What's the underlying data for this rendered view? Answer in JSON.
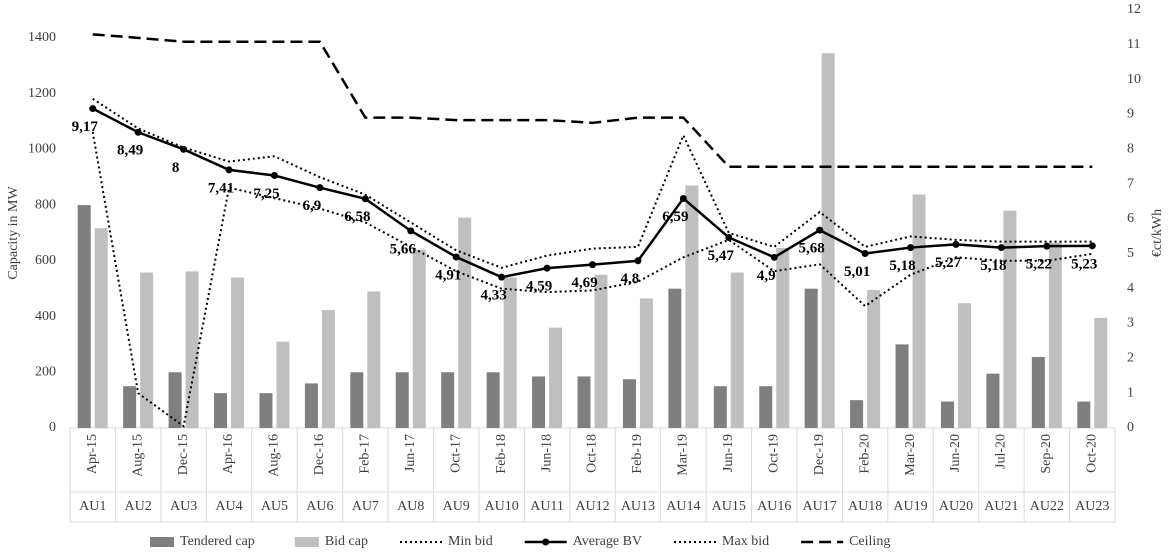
{
  "chart_data": {
    "type": "bar-line",
    "categories": [
      "Apr-15",
      "Aug-15",
      "Dec-15",
      "Apr-16",
      "Aug-16",
      "Dec-16",
      "Feb-17",
      "Jun-17",
      "Oct-17",
      "Feb-18",
      "Jun-18",
      "Oct-18",
      "Feb-19",
      "Mar-19",
      "Jun-19",
      "Oct-19",
      "Dec-19",
      "Feb-20",
      "Mar-20",
      "Jun-20",
      "Jul-20",
      "Sep-20",
      "Oct-20"
    ],
    "auctions": [
      "AU1",
      "AU2",
      "AU3",
      "AU4",
      "AU5",
      "AU6",
      "AU7",
      "AU8",
      "AU9",
      "AU10",
      "AU11",
      "AU12",
      "AU13",
      "AU14",
      "AU15",
      "AU16",
      "AU17",
      "AU18",
      "AU19",
      "AU20",
      "AU21",
      "AU22",
      "AU23"
    ],
    "ylabel": "Capacity in MW",
    "y2label": "€ct/kWh",
    "ylim": [
      0,
      1500
    ],
    "yticks": [
      0,
      200,
      400,
      600,
      800,
      1000,
      1200,
      1400
    ],
    "y2lim": [
      0,
      12
    ],
    "y2ticks": [
      0,
      1,
      2,
      3,
      4,
      5,
      6,
      7,
      8,
      9,
      10,
      11,
      12
    ],
    "legend": "bottom",
    "series": [
      {
        "name": "Tendered cap",
        "kind": "bar",
        "color": "#7f7f7f",
        "values": [
          800,
          150,
          200,
          125,
          125,
          160,
          200,
          200,
          200,
          200,
          185,
          185,
          175,
          500,
          150,
          150,
          500,
          100,
          300,
          95,
          195,
          255,
          95
        ]
      },
      {
        "name": "Bid cap",
        "kind": "bar",
        "color": "#bfbfbf",
        "values": [
          717,
          558,
          562,
          540,
          310,
          423,
          490,
          640,
          755,
          540,
          360,
          550,
          465,
          870,
          558,
          646,
          1345,
          495,
          838,
          448,
          780,
          665,
          395
        ]
      },
      {
        "name": "Min bid",
        "kind": "line",
        "axis": "y2",
        "color": "#000000",
        "dash": "dotted",
        "values": [
          8.5,
          1.0,
          0.05,
          6.9,
          6.6,
          6.3,
          5.9,
          5.2,
          4.5,
          4.0,
          3.9,
          3.95,
          4.2,
          4.9,
          5.4,
          4.5,
          4.7,
          3.5,
          4.4,
          4.9,
          4.8,
          4.8,
          5.0
        ]
      },
      {
        "name": "Average BV",
        "kind": "line",
        "axis": "y2",
        "color": "#000000",
        "dash": "solid",
        "marker": "circle",
        "values": [
          9.17,
          8.49,
          8,
          7.41,
          7.25,
          6.9,
          6.58,
          5.66,
          4.91,
          4.33,
          4.59,
          4.69,
          4.8,
          6.59,
          5.47,
          4.9,
          5.68,
          5.01,
          5.18,
          5.27,
          5.18,
          5.22,
          5.23
        ],
        "value_labels": [
          "9,17",
          "8,49",
          "8",
          "7,41",
          "7,25",
          "6,9",
          "6,58",
          "5,66",
          "4,91",
          "4,33",
          "4,59",
          "4,69",
          "4,8",
          "6,59",
          "5,47",
          "4,9",
          "5,68",
          "5,01",
          "5,18",
          "5,27",
          "5,18",
          "5,22",
          "5,23"
        ]
      },
      {
        "name": "Max bid",
        "kind": "line",
        "axis": "y2",
        "color": "#000000",
        "dash": "dotted",
        "values": [
          9.45,
          8.6,
          8.05,
          7.65,
          7.8,
          7.2,
          6.7,
          5.9,
          5.1,
          4.6,
          4.95,
          5.15,
          5.2,
          8.4,
          5.6,
          5.2,
          6.2,
          5.2,
          5.5,
          5.4,
          5.35,
          5.35,
          5.35
        ]
      },
      {
        "name": "Ceiling",
        "kind": "line",
        "axis": "y2",
        "color": "#000000",
        "dash": "dashed",
        "values": [
          11.3,
          11.2,
          11.09,
          11.09,
          11.09,
          11.09,
          8.91,
          8.91,
          8.84,
          8.84,
          8.84,
          8.76,
          8.91,
          8.91,
          7.5,
          7.5,
          7.5,
          7.5,
          7.5,
          7.5,
          7.5,
          7.5,
          7.5
        ]
      }
    ]
  }
}
